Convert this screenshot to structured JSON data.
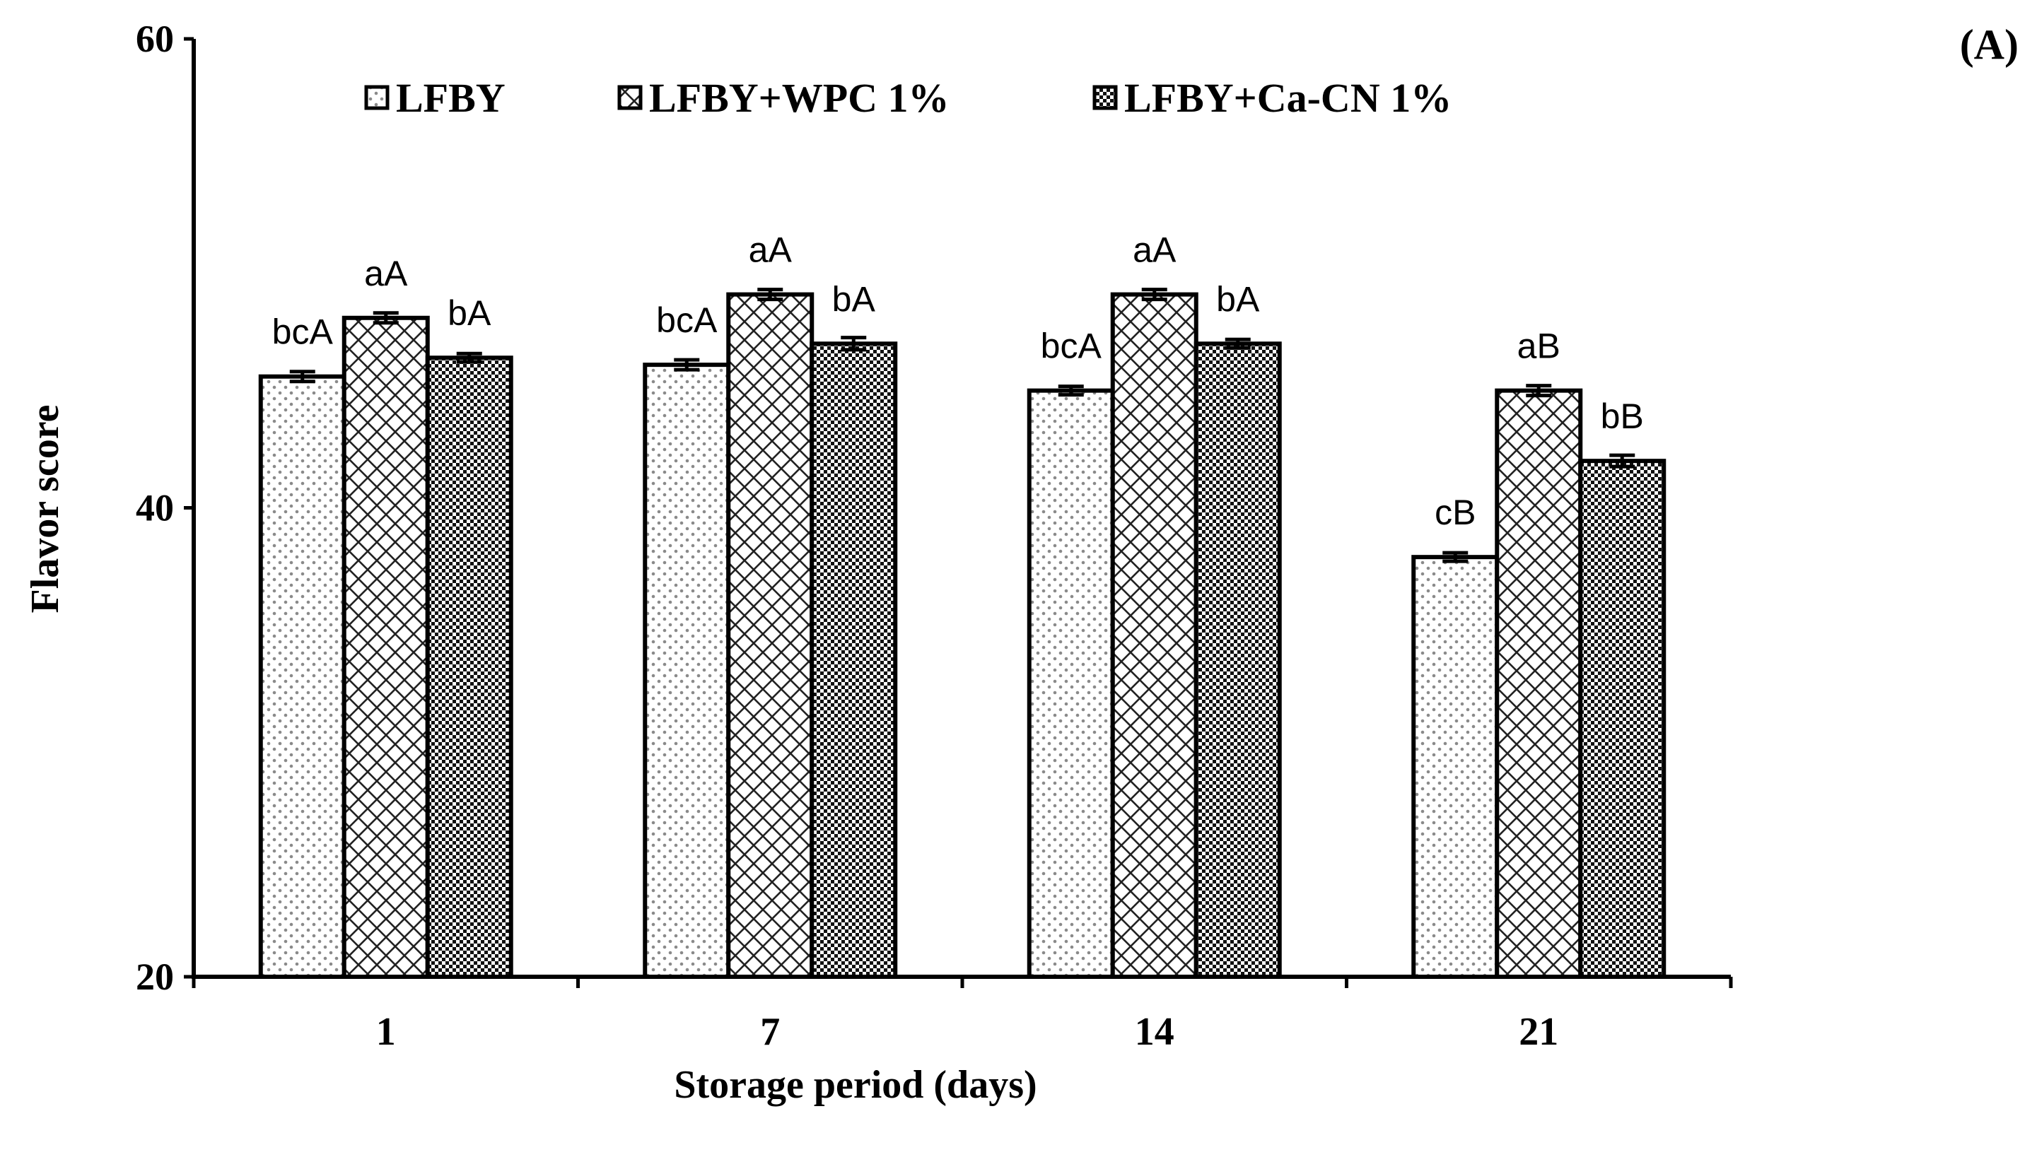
{
  "chart_data": {
    "type": "bar",
    "panel_label": "(A)",
    "xlabel": "Storage period (days)",
    "ylabel": "Flavor score",
    "ylim": [
      20,
      60
    ],
    "yticks": [
      20,
      40,
      60
    ],
    "grid": false,
    "legend_position": "top",
    "categories": [
      "1",
      "7",
      "14",
      "21"
    ],
    "series": [
      {
        "name": "LFBY",
        "pattern": "dots",
        "values": [
          45.6,
          46.1,
          45.0,
          37.9
        ],
        "errors": [
          0.15,
          0.15,
          0.12,
          0.12
        ],
        "labels": [
          "bcA",
          "bcA",
          "bcA",
          "cB"
        ]
      },
      {
        "name": "LFBY+WPC 1%",
        "pattern": "crosshatch",
        "values": [
          48.1,
          49.1,
          49.1,
          45.0
        ],
        "errors": [
          0.15,
          0.15,
          0.15,
          0.15
        ],
        "labels": [
          "aA",
          "aA",
          "aA",
          "aB"
        ]
      },
      {
        "name": "LFBY+Ca-CN 1%",
        "pattern": "checker",
        "values": [
          46.4,
          47.0,
          47.0,
          42.0
        ],
        "errors": [
          0.12,
          0.2,
          0.12,
          0.18
        ],
        "labels": [
          "bA",
          "bA",
          "bA",
          "bB"
        ]
      }
    ]
  }
}
